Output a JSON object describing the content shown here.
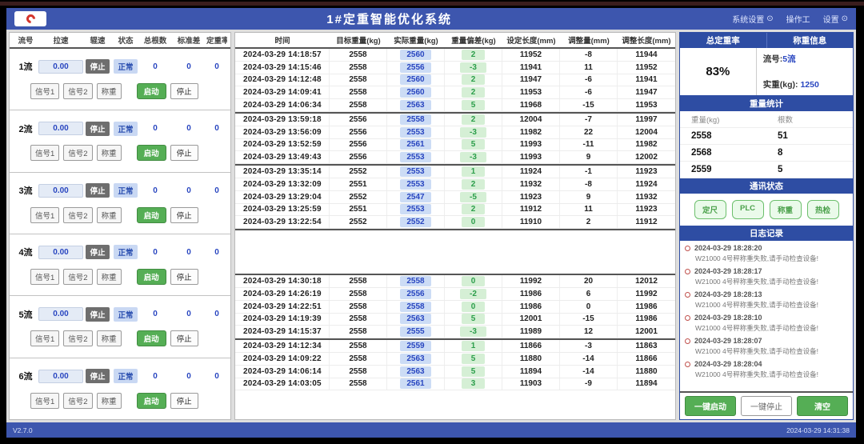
{
  "header": {
    "title": "1#定重智能优化系统",
    "menu": [
      {
        "label": "系统设置",
        "icon": "gear"
      },
      {
        "label": "操作工",
        "icon": ""
      },
      {
        "label": "设置",
        "icon": "gear"
      }
    ]
  },
  "colors": {
    "header_bg": "#3d56ae",
    "section_header_bg": "#2e4da3",
    "green_accent": "#55ae55",
    "actual_weight_bg": "#ccdcf5",
    "actual_weight_text": "#2946c0",
    "deviation_bg": "#d5efd5",
    "deviation_text": "#2c9e4b",
    "alert_red": "#c0504d"
  },
  "streams_panel": {
    "columns": [
      "流号",
      "拉速",
      "辊速",
      "状态",
      "总根数",
      "标准差",
      "定重率"
    ],
    "button_labels": {
      "signal1": "信号1",
      "signal2": "信号2",
      "weigh": "称重",
      "start": "启动",
      "stop": "停止"
    },
    "streams": [
      {
        "name": "1流",
        "speed": "0.00",
        "run_state": "停止",
        "health": "正常",
        "total": "0",
        "std_dev": "0",
        "rate": "0"
      },
      {
        "name": "2流",
        "speed": "0.00",
        "run_state": "停止",
        "health": "正常",
        "total": "0",
        "std_dev": "0",
        "rate": "0"
      },
      {
        "name": "3流",
        "speed": "0.00",
        "run_state": "停止",
        "health": "正常",
        "total": "0",
        "std_dev": "0",
        "rate": "0"
      },
      {
        "name": "4流",
        "speed": "0.00",
        "run_state": "停止",
        "health": "正常",
        "total": "0",
        "std_dev": "0",
        "rate": "0"
      },
      {
        "name": "5流",
        "speed": "0.00",
        "run_state": "停止",
        "health": "正常",
        "total": "0",
        "std_dev": "0",
        "rate": "0"
      },
      {
        "name": "6流",
        "speed": "0.00",
        "run_state": "停止",
        "health": "正常",
        "total": "0",
        "std_dev": "0",
        "rate": "0"
      }
    ]
  },
  "records_table": {
    "columns": [
      "时间",
      "目标重量(kg)",
      "实际重量(kg)",
      "重量偏差(kg)",
      "设定长度(mm)",
      "调整量(mm)",
      "调整长度(mm)"
    ],
    "sections": [
      {
        "rows": [
          [
            "2024-03-29 14:18:57",
            "2558",
            "2560",
            "2",
            "11952",
            "-8",
            "11944"
          ],
          [
            "2024-03-29 14:15:46",
            "2558",
            "2556",
            "-3",
            "11941",
            "11",
            "11952"
          ],
          [
            "2024-03-29 14:12:48",
            "2558",
            "2560",
            "2",
            "11947",
            "-6",
            "11941"
          ],
          [
            "2024-03-29 14:09:41",
            "2558",
            "2560",
            "2",
            "11953",
            "-6",
            "11947"
          ],
          [
            "2024-03-29 14:06:34",
            "2558",
            "2563",
            "5",
            "11968",
            "-15",
            "11953"
          ]
        ]
      },
      {
        "rows": [
          [
            "2024-03-29 13:59:18",
            "2556",
            "2558",
            "2",
            "12004",
            "-7",
            "11997"
          ],
          [
            "2024-03-29 13:56:09",
            "2556",
            "2553",
            "-3",
            "11982",
            "22",
            "12004"
          ],
          [
            "2024-03-29 13:52:59",
            "2556",
            "2561",
            "5",
            "11993",
            "-11",
            "11982"
          ],
          [
            "2024-03-29 13:49:43",
            "2556",
            "2553",
            "-3",
            "11993",
            "9",
            "12002"
          ]
        ]
      },
      {
        "rows": [
          [
            "2024-03-29 13:35:14",
            "2552",
            "2553",
            "1",
            "11924",
            "-1",
            "11923"
          ],
          [
            "2024-03-29 13:32:09",
            "2551",
            "2553",
            "2",
            "11932",
            "-8",
            "11924"
          ],
          [
            "2024-03-29 13:29:04",
            "2552",
            "2547",
            "-5",
            "11923",
            "9",
            "11932"
          ],
          [
            "2024-03-29 13:25:59",
            "2551",
            "2553",
            "2",
            "11912",
            "11",
            "11923"
          ],
          [
            "2024-03-29 13:22:54",
            "2552",
            "2552",
            "0",
            "11910",
            "2",
            "11912"
          ]
        ]
      },
      {
        "rows": []
      },
      {
        "rows": [
          [
            "2024-03-29 14:30:18",
            "2558",
            "2558",
            "0",
            "11992",
            "20",
            "12012"
          ],
          [
            "2024-03-29 14:26:19",
            "2558",
            "2556",
            "-2",
            "11986",
            "6",
            "11992"
          ],
          [
            "2024-03-29 14:22:51",
            "2558",
            "2558",
            "0",
            "11986",
            "0",
            "11986"
          ],
          [
            "2024-03-29 14:19:39",
            "2558",
            "2563",
            "5",
            "12001",
            "-15",
            "11986"
          ],
          [
            "2024-03-29 14:15:37",
            "2558",
            "2555",
            "-3",
            "11989",
            "12",
            "12001"
          ]
        ]
      },
      {
        "rows": [
          [
            "2024-03-29 14:12:34",
            "2558",
            "2559",
            "1",
            "11866",
            "-3",
            "11863"
          ],
          [
            "2024-03-29 14:09:22",
            "2558",
            "2563",
            "5",
            "11880",
            "-14",
            "11866"
          ],
          [
            "2024-03-29 14:06:14",
            "2558",
            "2563",
            "5",
            "11894",
            "-14",
            "11880"
          ],
          [
            "2024-03-29 14:03:05",
            "2558",
            "2561",
            "3",
            "11903",
            "-9",
            "11894"
          ]
        ]
      }
    ]
  },
  "summary": {
    "total_rate_title": "总定重率",
    "total_rate_value": "83%",
    "weigh_info_title": "称重信息",
    "stream_label": "流号:",
    "stream_value": "5流",
    "weight_label": "实重(kg):",
    "weight_value": "1250"
  },
  "weight_stats": {
    "title": "重量统计",
    "columns": [
      "重量(kg)",
      "根数"
    ],
    "rows": [
      [
        "2558",
        "51"
      ],
      [
        "2568",
        "8"
      ],
      [
        "2559",
        "5"
      ]
    ]
  },
  "comm_status": {
    "title": "通讯状态",
    "buttons": [
      "定尺",
      "PLC",
      "称重",
      "热检"
    ]
  },
  "logs": {
    "title": "日志记录",
    "entries": [
      {
        "time": "2024-03-29 18:28:20",
        "message": "W21000 4号秤称重失败,请手动检查设备!"
      },
      {
        "time": "2024-03-29 18:28:17",
        "message": "W21000 4号秤称重失败,请手动检查设备!"
      },
      {
        "time": "2024-03-29 18:28:13",
        "message": "W21000 4号秤称重失败,请手动检查设备!"
      },
      {
        "time": "2024-03-29 18:28:10",
        "message": "W21000 4号秤称重失败,请手动检查设备!"
      },
      {
        "time": "2024-03-29 18:28:07",
        "message": "W21000 4号秤称重失败,请手动检查设备!"
      },
      {
        "time": "2024-03-29 18:28:04",
        "message": "W21000 4号秤称重失败,请手动检查设备!"
      }
    ]
  },
  "actions": {
    "start_all": "一键启动",
    "stop_all": "一键停止",
    "clear": "清空"
  },
  "footer": {
    "version": "V2.7.0",
    "datetime": "2024-03-29 14:31:38"
  }
}
